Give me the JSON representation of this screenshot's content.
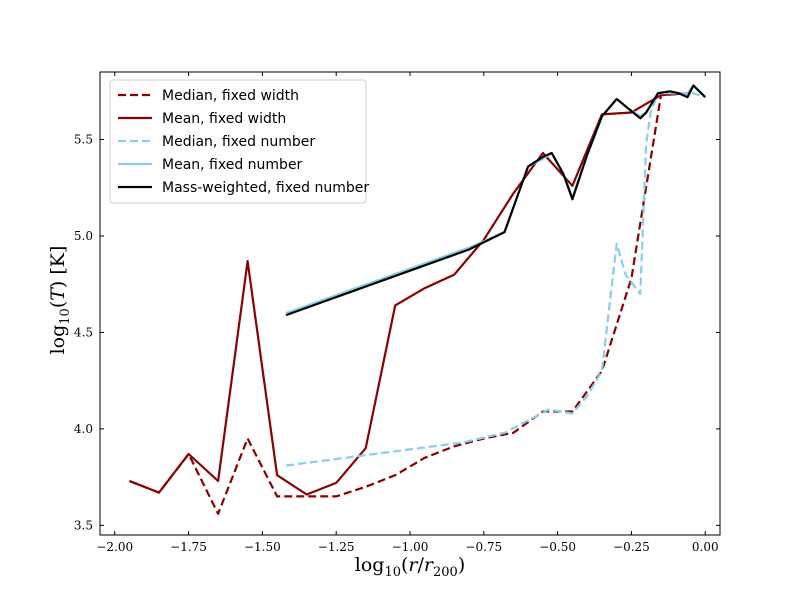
{
  "chart_data": {
    "type": "line",
    "title": "",
    "xlabel": "log10(r/r200)",
    "ylabel": "log10(T) [K]",
    "xlim": [
      -2.05,
      0.05
    ],
    "ylim": [
      3.45,
      5.85
    ],
    "xticks": [
      -2.0,
      -1.75,
      -1.5,
      -1.25,
      -1.0,
      -0.75,
      -0.5,
      -0.25,
      0.0
    ],
    "xtick_labels": [
      "−2.00",
      "−1.75",
      "−1.50",
      "−1.25",
      "−1.00",
      "−0.75",
      "−0.50",
      "−0.25",
      "0.00"
    ],
    "yticks": [
      3.5,
      4.0,
      4.5,
      5.0,
      5.5
    ],
    "ytick_labels": [
      "3.5",
      "4.0",
      "4.5",
      "5.0",
      "5.5"
    ],
    "grid": false,
    "legend_position": "top-left",
    "series": [
      {
        "name": "Median, fixed width",
        "color": "#8b0000",
        "dash": "dashed",
        "x": [
          -1.95,
          -1.85,
          -1.75,
          -1.65,
          -1.55,
          -1.45,
          -1.35,
          -1.25,
          -1.15,
          -1.05,
          -0.95,
          -0.85,
          -0.75,
          -0.65,
          -0.55,
          -0.45,
          -0.35,
          -0.25,
          -0.15,
          -0.05
        ],
        "y": [
          3.73,
          3.67,
          3.87,
          3.56,
          3.95,
          3.65,
          3.65,
          3.65,
          3.7,
          3.76,
          3.85,
          3.91,
          3.95,
          3.98,
          4.09,
          4.09,
          4.3,
          4.78,
          5.73,
          5.74
        ]
      },
      {
        "name": "Mean, fixed width",
        "color": "#8b0000",
        "dash": "solid",
        "x": [
          -1.95,
          -1.85,
          -1.75,
          -1.65,
          -1.55,
          -1.45,
          -1.35,
          -1.25,
          -1.15,
          -1.05,
          -0.95,
          -0.85,
          -0.75,
          -0.65,
          -0.55,
          -0.45,
          -0.35,
          -0.25,
          -0.15,
          -0.05
        ],
        "y": [
          3.73,
          3.67,
          3.87,
          3.73,
          4.87,
          3.76,
          3.66,
          3.72,
          3.9,
          4.64,
          4.73,
          4.8,
          4.98,
          5.22,
          5.43,
          5.26,
          5.63,
          5.64,
          5.73,
          5.74
        ]
      },
      {
        "name": "Median, fixed number",
        "color": "#87ceeb",
        "dash": "dashed",
        "x": [
          -1.42,
          -0.82,
          -0.68,
          -0.53,
          -0.45,
          -0.4,
          -0.35,
          -0.3,
          -0.27,
          -0.22,
          -0.2,
          -0.185,
          -0.16,
          -0.13,
          -0.09,
          -0.04,
          0.0
        ],
        "y": [
          3.81,
          3.93,
          3.98,
          4.1,
          4.08,
          4.17,
          4.3,
          4.96,
          4.8,
          4.7,
          5.48,
          5.64,
          5.74,
          5.74,
          5.74,
          5.74,
          5.72
        ]
      },
      {
        "name": "Mean, fixed number",
        "color": "#87ceeb",
        "dash": "solid",
        "x": [
          -1.42,
          -0.8,
          -0.68,
          -0.6,
          -0.55,
          -0.52,
          -0.48,
          -0.45,
          -0.4,
          -0.35,
          -0.3,
          -0.26,
          -0.22,
          -0.2,
          -0.16,
          -0.12,
          -0.09,
          -0.06,
          -0.04,
          0.0
        ],
        "y": [
          4.6,
          4.94,
          5.02,
          5.36,
          5.4,
          5.43,
          5.32,
          5.2,
          5.42,
          5.62,
          5.71,
          5.66,
          5.62,
          5.64,
          5.74,
          5.74,
          5.74,
          5.74,
          5.78,
          5.72
        ]
      },
      {
        "name": "Mass-weighted, fixed number",
        "color": "#000000",
        "dash": "solid",
        "x": [
          -1.42,
          -0.8,
          -0.68,
          -0.6,
          -0.55,
          -0.52,
          -0.48,
          -0.45,
          -0.4,
          -0.35,
          -0.3,
          -0.26,
          -0.22,
          -0.2,
          -0.16,
          -0.12,
          -0.09,
          -0.06,
          -0.04,
          0.0
        ],
        "y": [
          4.59,
          4.93,
          5.02,
          5.36,
          5.41,
          5.43,
          5.32,
          5.19,
          5.42,
          5.62,
          5.71,
          5.66,
          5.61,
          5.64,
          5.74,
          5.75,
          5.74,
          5.72,
          5.78,
          5.72
        ]
      }
    ]
  }
}
